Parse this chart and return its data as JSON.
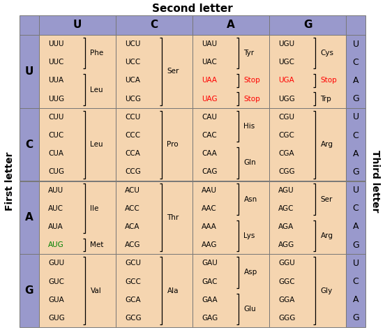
{
  "title_top": "Second letter",
  "title_left": "First letter",
  "title_right": "Third letter",
  "second_letters": [
    "U",
    "C",
    "A",
    "G"
  ],
  "first_letters": [
    "U",
    "C",
    "A",
    "G"
  ],
  "third_letters": [
    "U",
    "C",
    "A",
    "G"
  ],
  "header_bg": "#9999cc",
  "cell_bg": "#f5d5b0",
  "cells": [
    {
      "codons": [
        "UUU",
        "UUC",
        "UUA",
        "UUG"
      ],
      "codon_colors": [
        "black",
        "black",
        "black",
        "black"
      ],
      "groups": [
        {
          "codons": [
            0,
            1
          ],
          "label": "Phe"
        },
        {
          "codons": [
            2,
            3
          ],
          "label": "Leu"
        }
      ]
    },
    {
      "codons": [
        "UCU",
        "UCC",
        "UCA",
        "UCG"
      ],
      "codon_colors": [
        "black",
        "black",
        "black",
        "black"
      ],
      "groups": [
        {
          "codons": [
            0,
            1,
            2,
            3
          ],
          "label": "Ser"
        }
      ]
    },
    {
      "codons": [
        "UAU",
        "UAC",
        "UAA",
        "UAG"
      ],
      "codon_colors": [
        "black",
        "black",
        "red",
        "red"
      ],
      "groups": [
        {
          "codons": [
            0,
            1
          ],
          "label": "Tyr",
          "label_color": "black"
        },
        {
          "codons": [
            2
          ],
          "label": "Stop",
          "label_color": "red"
        },
        {
          "codons": [
            3
          ],
          "label": "Stop",
          "label_color": "red"
        }
      ]
    },
    {
      "codons": [
        "UGU",
        "UGC",
        "UGA",
        "UGG"
      ],
      "codon_colors": [
        "black",
        "black",
        "red",
        "black"
      ],
      "groups": [
        {
          "codons": [
            0,
            1
          ],
          "label": "Cys",
          "label_color": "black"
        },
        {
          "codons": [
            2
          ],
          "label": "Stop",
          "label_color": "red"
        },
        {
          "codons": [
            3
          ],
          "label": "Trp",
          "label_color": "black"
        }
      ]
    },
    {
      "codons": [
        "CUU",
        "CUC",
        "CUA",
        "CUG"
      ],
      "codon_colors": [
        "black",
        "black",
        "black",
        "black"
      ],
      "groups": [
        {
          "codons": [
            0,
            1,
            2,
            3
          ],
          "label": "Leu"
        }
      ]
    },
    {
      "codons": [
        "CCU",
        "CCC",
        "CCA",
        "CCG"
      ],
      "codon_colors": [
        "black",
        "black",
        "black",
        "black"
      ],
      "groups": [
        {
          "codons": [
            0,
            1,
            2,
            3
          ],
          "label": "Pro"
        }
      ]
    },
    {
      "codons": [
        "CAU",
        "CAC",
        "CAA",
        "CAG"
      ],
      "codon_colors": [
        "black",
        "black",
        "black",
        "black"
      ],
      "groups": [
        {
          "codons": [
            0,
            1
          ],
          "label": "His"
        },
        {
          "codons": [
            2,
            3
          ],
          "label": "Gln"
        }
      ]
    },
    {
      "codons": [
        "CGU",
        "CGC",
        "CGA",
        "CGG"
      ],
      "codon_colors": [
        "black",
        "black",
        "black",
        "black"
      ],
      "groups": [
        {
          "codons": [
            0,
            1,
            2,
            3
          ],
          "label": "Arg"
        }
      ]
    },
    {
      "codons": [
        "AUU",
        "AUC",
        "AUA",
        "AUG"
      ],
      "codon_colors": [
        "black",
        "black",
        "black",
        "green"
      ],
      "groups": [
        {
          "codons": [
            0,
            1,
            2
          ],
          "label": "Ile"
        },
        {
          "codons": [
            3
          ],
          "label": "Met"
        }
      ]
    },
    {
      "codons": [
        "ACU",
        "ACC",
        "ACA",
        "ACG"
      ],
      "codon_colors": [
        "black",
        "black",
        "black",
        "black"
      ],
      "groups": [
        {
          "codons": [
            0,
            1,
            2,
            3
          ],
          "label": "Thr"
        }
      ]
    },
    {
      "codons": [
        "AAU",
        "AAC",
        "AAA",
        "AAG"
      ],
      "codon_colors": [
        "black",
        "black",
        "black",
        "black"
      ],
      "groups": [
        {
          "codons": [
            0,
            1
          ],
          "label": "Asn"
        },
        {
          "codons": [
            2,
            3
          ],
          "label": "Lys"
        }
      ]
    },
    {
      "codons": [
        "AGU",
        "AGC",
        "AGA",
        "AGG"
      ],
      "codon_colors": [
        "black",
        "black",
        "black",
        "black"
      ],
      "groups": [
        {
          "codons": [
            0,
            1
          ],
          "label": "Ser"
        },
        {
          "codons": [
            2,
            3
          ],
          "label": "Arg"
        }
      ]
    },
    {
      "codons": [
        "GUU",
        "GUC",
        "GUA",
        "GUG"
      ],
      "codon_colors": [
        "black",
        "black",
        "black",
        "black"
      ],
      "groups": [
        {
          "codons": [
            0,
            1,
            2,
            3
          ],
          "label": "Val"
        }
      ]
    },
    {
      "codons": [
        "GCU",
        "GCC",
        "GCA",
        "GCG"
      ],
      "codon_colors": [
        "black",
        "black",
        "black",
        "black"
      ],
      "groups": [
        {
          "codons": [
            0,
            1,
            2,
            3
          ],
          "label": "Ala"
        }
      ]
    },
    {
      "codons": [
        "GAU",
        "GAC",
        "GAA",
        "GAG"
      ],
      "codon_colors": [
        "black",
        "black",
        "black",
        "black"
      ],
      "groups": [
        {
          "codons": [
            0,
            1
          ],
          "label": "Asp"
        },
        {
          "codons": [
            2,
            3
          ],
          "label": "Glu"
        }
      ]
    },
    {
      "codons": [
        "GGU",
        "GGC",
        "GGA",
        "GGG"
      ],
      "codon_colors": [
        "black",
        "black",
        "black",
        "black"
      ],
      "groups": [
        {
          "codons": [
            0,
            1,
            2,
            3
          ],
          "label": "Gly"
        }
      ]
    }
  ]
}
